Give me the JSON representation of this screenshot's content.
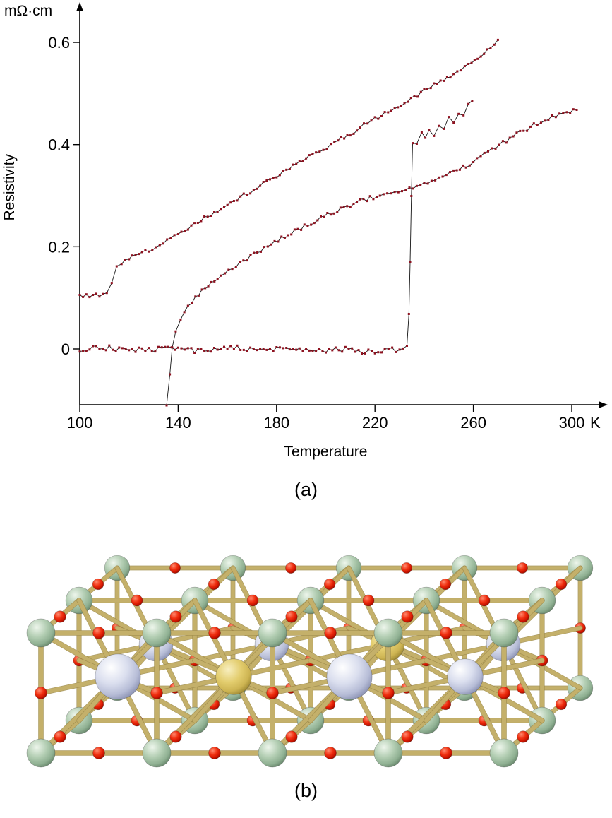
{
  "captions": {
    "a": "(a)",
    "b": "(b)"
  },
  "chart_data": {
    "type": "scatter",
    "title": "",
    "ylabel": "Resistivity",
    "unit_label": "mΩ·cm",
    "xlabel": "Temperature",
    "x_unit": "K",
    "xlim": [
      100,
      305
    ],
    "ylim": [
      -0.11,
      0.63
    ],
    "x_ticks": [
      100,
      140,
      180,
      220,
      260,
      300
    ],
    "y_ticks": [
      0,
      0.2,
      0.4,
      0.6
    ],
    "grid": false,
    "legend": "none",
    "marker_color": "#8e1220",
    "line_color": "#141414",
    "series": [
      {
        "name": "upper_curve",
        "noise": 0.004,
        "anchors": [
          [
            100,
            0.105
          ],
          [
            104,
            0.104
          ],
          [
            108,
            0.106
          ],
          [
            111,
            0.109
          ],
          [
            113,
            0.128
          ],
          [
            115,
            0.158
          ],
          [
            117,
            0.17
          ],
          [
            120,
            0.177
          ],
          [
            124,
            0.184
          ],
          [
            128,
            0.192
          ],
          [
            134,
            0.208
          ],
          [
            140,
            0.226
          ],
          [
            148,
            0.248
          ],
          [
            156,
            0.27
          ],
          [
            164,
            0.293
          ],
          [
            172,
            0.316
          ],
          [
            180,
            0.338
          ],
          [
            188,
            0.361
          ],
          [
            196,
            0.383
          ],
          [
            202,
            0.398
          ],
          [
            205,
            0.41
          ],
          [
            210,
            0.421
          ],
          [
            214,
            0.433
          ],
          [
            220,
            0.451
          ],
          [
            228,
            0.471
          ],
          [
            236,
            0.493
          ],
          [
            244,
            0.516
          ],
          [
            252,
            0.538
          ],
          [
            258,
            0.554
          ],
          [
            263,
            0.573
          ],
          [
            267,
            0.591
          ],
          [
            270,
            0.605
          ]
        ]
      },
      {
        "name": "middle_curve_transition_137K",
        "noise": 0.004,
        "anchors": [
          [
            135.3,
            -0.125
          ],
          [
            136.6,
            -0.05
          ],
          [
            137.6,
            0.005
          ],
          [
            139,
            0.032
          ],
          [
            141,
            0.057
          ],
          [
            144,
            0.083
          ],
          [
            147,
            0.101
          ],
          [
            151,
            0.118
          ],
          [
            156,
            0.137
          ],
          [
            162,
            0.158
          ],
          [
            168,
            0.176
          ],
          [
            175,
            0.197
          ],
          [
            182,
            0.216
          ],
          [
            190,
            0.237
          ],
          [
            198,
            0.257
          ],
          [
            206,
            0.274
          ],
          [
            214,
            0.289
          ],
          [
            222,
            0.301
          ],
          [
            228,
            0.307
          ],
          [
            234,
            0.314
          ],
          [
            240,
            0.323
          ],
          [
            246,
            0.334
          ],
          [
            252,
            0.347
          ],
          [
            257,
            0.358
          ],
          [
            260,
            0.363
          ],
          [
            261.5,
            0.374
          ],
          [
            266,
            0.386
          ],
          [
            272,
            0.403
          ],
          [
            279,
            0.424
          ],
          [
            286,
            0.441
          ],
          [
            292,
            0.453
          ],
          [
            298,
            0.463
          ],
          [
            302,
            0.468
          ]
        ]
      },
      {
        "name": "lower_curve_transition_235K",
        "noise": 0.0055,
        "anchors": [
          [
            100,
            0
          ],
          [
            112,
            0.002
          ],
          [
            124,
            -0.002
          ],
          [
            136,
            0.001
          ],
          [
            148,
            -0.003
          ],
          [
            160,
            0.002
          ],
          [
            172,
            -0.001
          ],
          [
            184,
            0.001
          ],
          [
            196,
            -0.002
          ],
          [
            208,
            -0.001
          ],
          [
            216,
            -0.005
          ],
          [
            224,
            -0.004
          ],
          [
            230,
            -0.001
          ],
          [
            233,
            0.005
          ],
          [
            233.8,
            0.07
          ],
          [
            234.3,
            0.17
          ],
          [
            234.8,
            0.3
          ],
          [
            235.3,
            0.405
          ],
          [
            237,
            0.406
          ],
          [
            239,
            0.419
          ],
          [
            240.5,
            0.409
          ],
          [
            242,
            0.429
          ],
          [
            244,
            0.421
          ],
          [
            246,
            0.441
          ],
          [
            248,
            0.433
          ],
          [
            250,
            0.451
          ],
          [
            252,
            0.448
          ],
          [
            254,
            0.463
          ],
          [
            256,
            0.461
          ],
          [
            258,
            0.476
          ],
          [
            259.5,
            0.486
          ]
        ]
      }
    ]
  },
  "structure": {
    "cells_x": 4,
    "cells_y": 1,
    "cells_z": 2,
    "centers": {
      "front": [
        "grayBig",
        "gold",
        "grayBig",
        "gray"
      ],
      "back": [
        "gray",
        "gray",
        "gold",
        "gray"
      ]
    },
    "radii": {
      "green": 20,
      "red": 8.5,
      "gray": 26,
      "grayBig": 33,
      "gold": 26
    },
    "palette": {
      "spheres": {
        "green": [
          "#eef6ec",
          "#b2cdb2",
          "#8fb092",
          "#5c7a60"
        ],
        "red": [
          "#ff8a70",
          "#f03010",
          "#cc1400",
          "#7e0c00"
        ],
        "gray": [
          "#ffffff",
          "#dadeee",
          "#b6bcd6",
          "#7d84a8"
        ],
        "gold": [
          "#f8efc0",
          "#e3cd6e",
          "#cdb452",
          "#8f7a28"
        ]
      },
      "bond": "#c4b06a",
      "bond_dark": "#9d8a4a"
    }
  }
}
